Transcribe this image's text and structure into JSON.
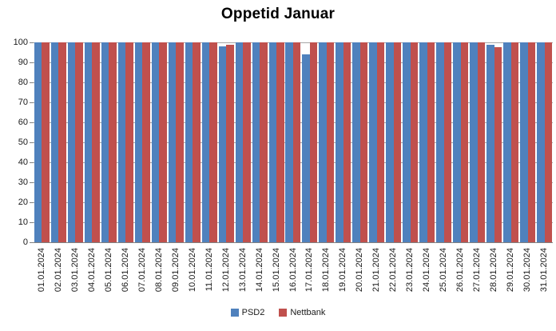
{
  "title": "Oppetid Januar",
  "chart_data": {
    "type": "bar",
    "bar_layout": "grouped",
    "title": "Oppetid Januar",
    "categories": [
      "01.01.2024",
      "02.01.2024",
      "03.01.2024",
      "04.01.2024",
      "05.01.2024",
      "06.01.2024",
      "07.01.2024",
      "08.01.2024",
      "09.01.2024",
      "10.01.2024",
      "11.01.2024",
      "12.01.2024",
      "13.01.2024",
      "14.01.2024",
      "15.01.2024",
      "16.01.2024",
      "17.01.2024",
      "18.01.2024",
      "19.01.2024",
      "20.01.2024",
      "21.01.2024",
      "22.01.2024",
      "23.01.2024",
      "24.01.2024",
      "25.01.2024",
      "26.01.2024",
      "27.01.2024",
      "28.01.2024",
      "29.01.2024",
      "30.01.2024",
      "31.01.2024"
    ],
    "series": [
      {
        "name": "PSD2",
        "color": "#4F81BD",
        "values": [
          100,
          100,
          100,
          100,
          100,
          100,
          100,
          100,
          100,
          100,
          100,
          98,
          100,
          100,
          100,
          100,
          94,
          100,
          100,
          100,
          100,
          100,
          100,
          100,
          100,
          100,
          100,
          99,
          100,
          100,
          100
        ]
      },
      {
        "name": "Nettbank",
        "color": "#C0504D",
        "values": [
          100,
          100,
          100,
          100,
          100,
          100,
          100,
          100,
          100,
          100,
          100,
          99,
          100,
          100,
          100,
          100,
          100,
          100,
          100,
          100,
          100,
          100,
          100,
          100,
          100,
          100,
          100,
          97.5,
          100,
          100,
          100
        ]
      }
    ],
    "ylim": [
      0,
      100
    ],
    "yticks": [
      0,
      10,
      20,
      30,
      40,
      50,
      60,
      70,
      80,
      90,
      100
    ],
    "xlabel": "",
    "ylabel": "",
    "grid": true,
    "legend_position": "bottom-center"
  },
  "legend": {
    "items": [
      {
        "label": "PSD2",
        "color": "#4F81BD"
      },
      {
        "label": "Nettbank",
        "color": "#C0504D"
      }
    ]
  },
  "colors": {
    "background": "#FFFFFF",
    "gridline": "#A6A6A6",
    "axis_line": "#808080",
    "text": "#1A1A1A"
  }
}
